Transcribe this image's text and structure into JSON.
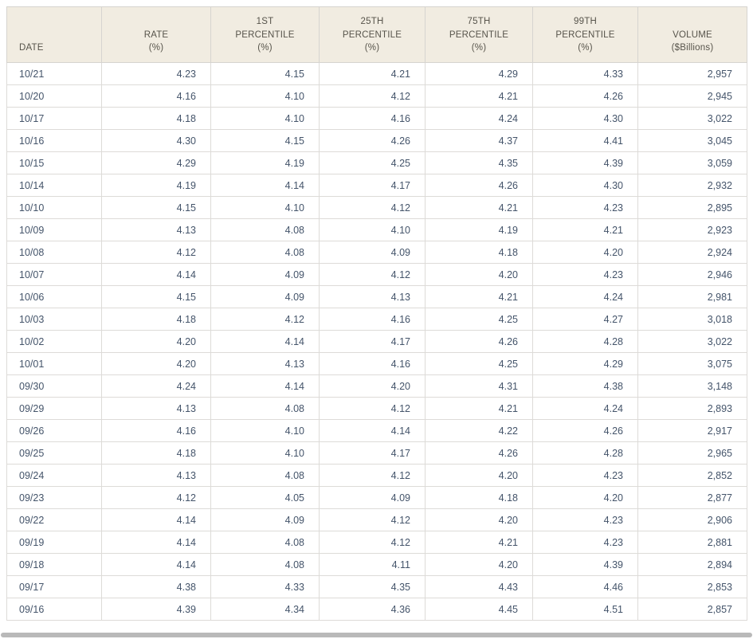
{
  "style": {
    "header_bg": "#f1ece1",
    "header_text": "#57544b",
    "body_text": "#44546a",
    "border": "#d6d4d0",
    "scrollbar": "#b9b9b9"
  },
  "chart_data": {
    "type": "table",
    "title": "",
    "columns": [
      "DATE",
      "RATE\n(%)",
      "1ST\nPERCENTILE\n(%)",
      "25TH\nPERCENTILE\n(%)",
      "75TH\nPERCENTILE\n(%)",
      "99TH\nPERCENTILE\n(%)",
      "VOLUME\n($Billions)"
    ],
    "rows": [
      [
        "10/21",
        "4.23",
        "4.15",
        "4.21",
        "4.29",
        "4.33",
        "2,957"
      ],
      [
        "10/20",
        "4.16",
        "4.10",
        "4.12",
        "4.21",
        "4.26",
        "2,945"
      ],
      [
        "10/17",
        "4.18",
        "4.10",
        "4.16",
        "4.24",
        "4.30",
        "3,022"
      ],
      [
        "10/16",
        "4.30",
        "4.15",
        "4.26",
        "4.37",
        "4.41",
        "3,045"
      ],
      [
        "10/15",
        "4.29",
        "4.19",
        "4.25",
        "4.35",
        "4.39",
        "3,059"
      ],
      [
        "10/14",
        "4.19",
        "4.14",
        "4.17",
        "4.26",
        "4.30",
        "2,932"
      ],
      [
        "10/10",
        "4.15",
        "4.10",
        "4.12",
        "4.21",
        "4.23",
        "2,895"
      ],
      [
        "10/09",
        "4.13",
        "4.08",
        "4.10",
        "4.19",
        "4.21",
        "2,923"
      ],
      [
        "10/08",
        "4.12",
        "4.08",
        "4.09",
        "4.18",
        "4.20",
        "2,924"
      ],
      [
        "10/07",
        "4.14",
        "4.09",
        "4.12",
        "4.20",
        "4.23",
        "2,946"
      ],
      [
        "10/06",
        "4.15",
        "4.09",
        "4.13",
        "4.21",
        "4.24",
        "2,981"
      ],
      [
        "10/03",
        "4.18",
        "4.12",
        "4.16",
        "4.25",
        "4.27",
        "3,018"
      ],
      [
        "10/02",
        "4.20",
        "4.14",
        "4.17",
        "4.26",
        "4.28",
        "3,022"
      ],
      [
        "10/01",
        "4.20",
        "4.13",
        "4.16",
        "4.25",
        "4.29",
        "3,075"
      ],
      [
        "09/30",
        "4.24",
        "4.14",
        "4.20",
        "4.31",
        "4.38",
        "3,148"
      ],
      [
        "09/29",
        "4.13",
        "4.08",
        "4.12",
        "4.21",
        "4.24",
        "2,893"
      ],
      [
        "09/26",
        "4.16",
        "4.10",
        "4.14",
        "4.22",
        "4.26",
        "2,917"
      ],
      [
        "09/25",
        "4.18",
        "4.10",
        "4.17",
        "4.26",
        "4.28",
        "2,965"
      ],
      [
        "09/24",
        "4.13",
        "4.08",
        "4.12",
        "4.20",
        "4.23",
        "2,852"
      ],
      [
        "09/23",
        "4.12",
        "4.05",
        "4.09",
        "4.18",
        "4.20",
        "2,877"
      ],
      [
        "09/22",
        "4.14",
        "4.09",
        "4.12",
        "4.20",
        "4.23",
        "2,906"
      ],
      [
        "09/19",
        "4.14",
        "4.08",
        "4.12",
        "4.21",
        "4.23",
        "2,881"
      ],
      [
        "09/18",
        "4.14",
        "4.08",
        "4.11",
        "4.20",
        "4.39",
        "2,894"
      ],
      [
        "09/17",
        "4.38",
        "4.33",
        "4.35",
        "4.43",
        "4.46",
        "2,853"
      ],
      [
        "09/16",
        "4.39",
        "4.34",
        "4.36",
        "4.45",
        "4.51",
        "2,857"
      ]
    ]
  }
}
